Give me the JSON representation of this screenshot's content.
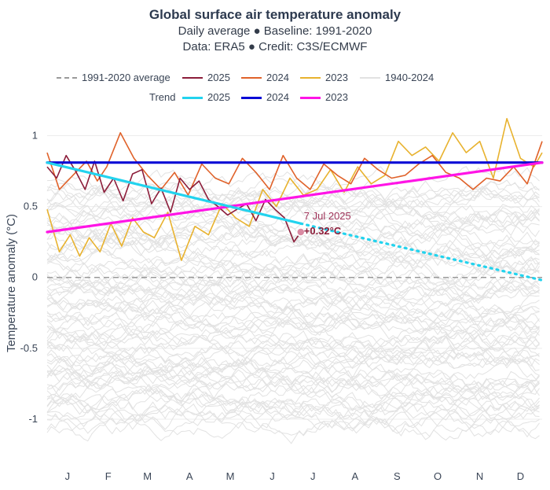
{
  "header": {
    "title": "Global surface air temperature anomaly",
    "subtitle1": "Daily average ● Baseline: 1991-2020",
    "subtitle2": "Data: ERA5 ● Credit: C3S/ECMWF"
  },
  "legend": {
    "baseline_label": "1991-2020 average",
    "series_2025": "2025",
    "series_2024": "2024",
    "series_2023": "2023",
    "series_hist": "1940-2024",
    "trend_title": "Trend",
    "trend_2025": "2025",
    "trend_2024": "2024",
    "trend_2023": "2023"
  },
  "annotation": {
    "date": "7 Jul 2025",
    "value": "+0.32°C"
  },
  "colors": {
    "s2025": "#8c1d3a",
    "s2024": "#e0622a",
    "s2023": "#e8b22e",
    "hist": "#e2e2e2",
    "baseline": "#9a9a9a",
    "trend2025": "#22d3ee",
    "trend2024": "#0a0ad6",
    "trend2023": "#ff14e6"
  },
  "chart_data": {
    "type": "line",
    "title": "Global surface air temperature anomaly",
    "xlabel": "",
    "ylabel": "Temperature anomaly (°C)",
    "ylim": [
      -1.25,
      1.18
    ],
    "xlim": [
      1,
      366
    ],
    "y_ticks": [
      1,
      0.5,
      0,
      -0.5,
      -1
    ],
    "y_tick_labels": [
      "1",
      "0.5",
      "0",
      "-0.5",
      "-1"
    ],
    "x_tick_days": [
      16,
      46,
      75,
      106,
      136,
      167,
      197,
      228,
      259,
      289,
      320,
      350
    ],
    "x_tick_labels": [
      "J",
      "F",
      "M",
      "A",
      "M",
      "J",
      "J",
      "A",
      "S",
      "O",
      "N",
      "D"
    ],
    "baseline": {
      "name": "1991-2020 average",
      "value": 0
    },
    "series": [
      {
        "name": "2025",
        "x": [
          1,
          8,
          15,
          22,
          29,
          36,
          43,
          50,
          57,
          64,
          71,
          78,
          85,
          92,
          99,
          106,
          113,
          120,
          127,
          134,
          141,
          148,
          155,
          162,
          169,
          176,
          183,
          188
        ],
        "values": [
          0.78,
          0.7,
          0.86,
          0.75,
          0.62,
          0.82,
          0.6,
          0.7,
          0.54,
          0.73,
          0.76,
          0.52,
          0.63,
          0.46,
          0.7,
          0.62,
          0.68,
          0.55,
          0.5,
          0.44,
          0.48,
          0.52,
          0.4,
          0.55,
          0.48,
          0.42,
          0.25,
          0.32
        ]
      },
      {
        "name": "2024",
        "x": [
          1,
          10,
          20,
          30,
          38,
          45,
          55,
          65,
          75,
          85,
          95,
          105,
          115,
          125,
          135,
          145,
          155,
          165,
          175,
          185,
          195,
          205,
          215,
          225,
          235,
          245,
          255,
          265,
          275,
          285,
          295,
          305,
          315,
          325,
          335,
          345,
          355,
          366
        ],
        "values": [
          0.88,
          0.62,
          0.72,
          0.82,
          0.68,
          0.78,
          1.02,
          0.84,
          0.72,
          0.62,
          0.74,
          0.58,
          0.8,
          0.7,
          0.66,
          0.84,
          0.74,
          0.62,
          0.86,
          0.7,
          0.62,
          0.8,
          0.72,
          0.66,
          0.84,
          0.76,
          0.7,
          0.72,
          0.8,
          0.86,
          0.74,
          0.7,
          0.62,
          0.7,
          0.68,
          0.78,
          0.66,
          0.96
        ]
      },
      {
        "name": "2023",
        "x": [
          1,
          10,
          18,
          25,
          32,
          40,
          48,
          56,
          64,
          72,
          80,
          90,
          100,
          110,
          120,
          130,
          140,
          150,
          160,
          170,
          180,
          190,
          200,
          210,
          220,
          230,
          240,
          250,
          260,
          270,
          280,
          290,
          300,
          310,
          320,
          330,
          340,
          350,
          360,
          366
        ],
        "values": [
          0.48,
          0.18,
          0.3,
          0.15,
          0.28,
          0.18,
          0.38,
          0.22,
          0.42,
          0.32,
          0.28,
          0.46,
          0.12,
          0.36,
          0.3,
          0.52,
          0.42,
          0.36,
          0.62,
          0.5,
          0.7,
          0.58,
          0.62,
          0.76,
          0.6,
          0.78,
          0.66,
          0.72,
          0.96,
          0.86,
          0.92,
          0.82,
          1.02,
          0.88,
          0.96,
          0.7,
          1.12,
          0.84,
          0.78,
          0.88
        ]
      }
    ],
    "trends": [
      {
        "name": "2025",
        "x": [
          1,
          188
        ],
        "values": [
          0.81,
          0.38
        ],
        "extension": {
          "x": [
            188,
            366
          ],
          "values": [
            0.38,
            -0.02
          ]
        }
      },
      {
        "name": "2024",
        "x": [
          1,
          366
        ],
        "values": [
          0.81,
          0.81
        ]
      },
      {
        "name": "2023",
        "x": [
          1,
          366
        ],
        "values": [
          0.32,
          0.81
        ]
      }
    ],
    "historical": {
      "name": "1940-2024",
      "range": [
        -1.25,
        0.9
      ]
    },
    "annotation": {
      "x": 188,
      "y": 0.32,
      "date": "7 Jul 2025",
      "value": "+0.32°C"
    }
  }
}
